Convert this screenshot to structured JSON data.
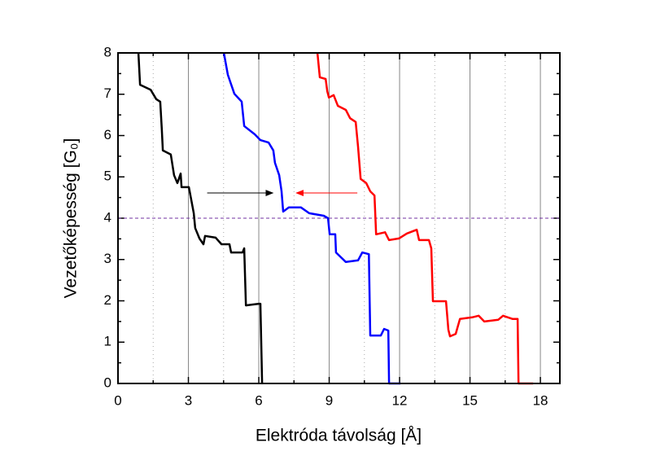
{
  "chart_data": {
    "type": "line",
    "xlabel": "Elektróda távolság [Å]",
    "ylabel": "Vezetőképesség [G₀]",
    "xlim": [
      0,
      18.83
    ],
    "ylim": [
      0,
      8
    ],
    "xticks": [
      0,
      3,
      6,
      9,
      12,
      15,
      18
    ],
    "yticks": [
      0,
      1,
      2,
      3,
      4,
      5,
      6,
      7,
      8
    ],
    "x_minor_ticks": [
      1.5,
      4.5,
      7.5,
      10.5,
      13.5,
      16.5
    ],
    "y_minor_ticks": [
      0.5,
      1.5,
      2.5,
      3.5,
      4.5,
      5.5,
      6.5,
      7.5
    ],
    "grid": true,
    "reference_line": {
      "y": 4,
      "color": "#7030a0"
    },
    "arrows": [
      {
        "from": [
          3.8,
          4.61
        ],
        "to": [
          6.6,
          4.61
        ],
        "color": "#000000"
      },
      {
        "from": [
          10.2,
          4.61
        ],
        "to": [
          7.6,
          4.61
        ],
        "color": "#ff0000"
      }
    ],
    "series": [
      {
        "color": "#000000",
        "x": [
          0.87,
          0.94,
          1.39,
          1.63,
          1.8,
          1.87,
          1.91,
          2.25,
          2.39,
          2.53,
          2.67,
          2.71,
          3.02,
          3.12,
          3.23,
          3.29,
          3.47,
          3.64,
          3.71,
          4.16,
          4.41,
          4.75,
          4.82,
          5.31,
          5.38,
          5.45,
          5.72,
          6.0,
          6.07,
          6.14
        ],
        "values": [
          8.0,
          7.23,
          7.11,
          6.88,
          6.82,
          6.13,
          5.64,
          5.54,
          5.04,
          4.85,
          5.08,
          4.75,
          4.75,
          4.45,
          4.12,
          3.76,
          3.51,
          3.37,
          3.57,
          3.53,
          3.37,
          3.37,
          3.17,
          3.17,
          3.27,
          1.89,
          1.91,
          1.93,
          1.93,
          0
        ]
      },
      {
        "color": "#0000ff",
        "x": [
          4.51,
          4.68,
          4.96,
          5.27,
          5.38,
          5.83,
          6.07,
          6.42,
          6.62,
          6.69,
          6.87,
          6.97,
          7.04,
          7.28,
          7.8,
          8.15,
          8.77,
          8.95,
          9.02,
          9.26,
          9.29,
          9.71,
          10.23,
          10.41,
          10.69,
          10.75,
          11.2,
          11.34,
          11.52,
          11.55,
          12.04
        ],
        "values": [
          8.0,
          7.47,
          7.01,
          6.82,
          6.23,
          6.03,
          5.89,
          5.83,
          5.64,
          5.34,
          5.04,
          4.65,
          4.16,
          4.26,
          4.26,
          4.12,
          4.06,
          4.0,
          3.61,
          3.61,
          3.17,
          2.94,
          2.98,
          3.17,
          3.13,
          1.16,
          1.16,
          1.32,
          1.28,
          0,
          0
        ]
      },
      {
        "color": "#ff0000",
        "x": [
          8.5,
          8.6,
          8.85,
          8.92,
          8.99,
          9.19,
          9.37,
          9.71,
          9.89,
          10.13,
          10.23,
          10.34,
          10.58,
          10.75,
          10.93,
          11.0,
          11.38,
          11.55,
          11.97,
          12.31,
          12.73,
          12.83,
          13.25,
          13.35,
          13.42,
          13.98,
          14.08,
          14.15,
          14.39,
          14.57,
          15.09,
          15.37,
          15.61,
          16.2,
          16.41,
          16.82,
          17.03,
          17.07,
          17.69
        ],
        "values": [
          8.0,
          7.41,
          7.37,
          7.07,
          6.92,
          6.98,
          6.72,
          6.62,
          6.42,
          6.33,
          5.73,
          4.95,
          4.85,
          4.65,
          4.55,
          3.61,
          3.66,
          3.47,
          3.51,
          3.63,
          3.72,
          3.47,
          3.47,
          3.27,
          1.99,
          1.99,
          1.3,
          1.14,
          1.2,
          1.56,
          1.6,
          1.64,
          1.5,
          1.54,
          1.64,
          1.56,
          1.56,
          0,
          0
        ]
      }
    ]
  }
}
